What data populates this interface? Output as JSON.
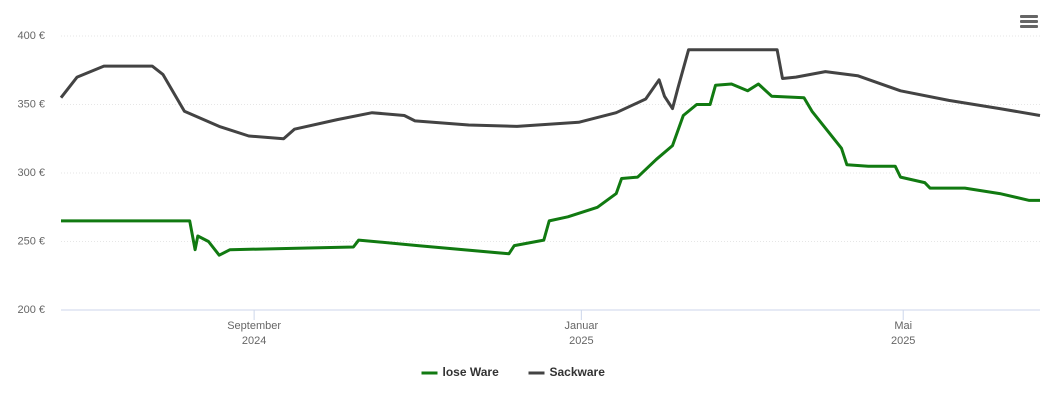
{
  "chart_data": {
    "type": "line",
    "xlim": [
      "2024-06-21",
      "2025-06-21"
    ],
    "xticks": [
      {
        "value": "2024-09-01",
        "label": [
          "September",
          "2024"
        ]
      },
      {
        "value": "2025-01-01",
        "label": [
          "Januar",
          "2025"
        ]
      },
      {
        "value": "2025-05-01",
        "label": [
          "Mai",
          "2025"
        ]
      }
    ],
    "ylim": [
      200,
      400
    ],
    "yticks": [
      {
        "value": 200,
        "label": "200 €"
      },
      {
        "value": 250,
        "label": "250 €"
      },
      {
        "value": 300,
        "label": "300 €"
      },
      {
        "value": 350,
        "label": "350 €"
      },
      {
        "value": 400,
        "label": "400 €"
      }
    ],
    "grid": true,
    "legend": "bottom",
    "series": [
      {
        "name": "lose Ware",
        "color": "#117a11",
        "x": [
          "2024-06-21",
          "2024-08-08",
          "2024-08-10",
          "2024-08-11",
          "2024-08-15",
          "2024-08-19",
          "2024-08-23",
          "2024-09-17",
          "2024-10-08",
          "2024-10-10",
          "2024-11-01",
          "2024-12-05",
          "2024-12-07",
          "2024-12-18",
          "2024-12-20",
          "2024-12-27",
          "2025-01-07",
          "2025-01-14",
          "2025-01-16",
          "2025-01-22",
          "2025-01-29",
          "2025-02-04",
          "2025-02-08",
          "2025-02-13",
          "2025-02-18",
          "2025-02-20",
          "2025-02-26",
          "2025-03-04",
          "2025-03-08",
          "2025-03-13",
          "2025-03-25",
          "2025-03-28",
          "2025-04-08",
          "2025-04-10",
          "2025-04-18",
          "2025-04-28",
          "2025-04-30",
          "2025-05-09",
          "2025-05-11",
          "2025-05-24",
          "2025-06-06",
          "2025-06-17",
          "2025-06-21"
        ],
        "values": [
          265,
          265,
          244,
          254,
          250,
          240,
          244,
          245,
          246,
          251,
          247,
          241,
          247,
          251,
          265,
          268,
          275,
          285,
          296,
          297,
          310,
          320,
          342,
          350,
          350,
          364,
          365,
          360,
          365,
          356,
          355,
          345,
          318,
          306,
          305,
          305,
          297,
          293,
          289,
          289,
          285,
          280,
          280
        ]
      },
      {
        "name": "Sackware",
        "color": "#434343",
        "x": [
          "2024-06-21",
          "2024-06-27",
          "2024-07-07",
          "2024-07-25",
          "2024-07-29",
          "2024-08-06",
          "2024-08-19",
          "2024-08-30",
          "2024-09-12",
          "2024-09-16",
          "2024-10-02",
          "2024-10-15",
          "2024-10-27",
          "2024-10-31",
          "2024-11-20",
          "2024-12-08",
          "2024-12-31",
          "2025-01-14",
          "2025-01-25",
          "2025-01-30",
          "2025-02-01",
          "2025-02-04",
          "2025-02-06",
          "2025-02-10",
          "2025-03-15",
          "2025-03-17",
          "2025-03-22",
          "2025-04-02",
          "2025-04-14",
          "2025-04-30",
          "2025-05-18",
          "2025-06-06",
          "2025-06-21"
        ],
        "values": [
          355,
          370,
          378,
          378,
          372,
          345,
          334,
          327,
          325,
          332,
          339,
          344,
          342,
          338,
          335,
          334,
          337,
          344,
          354,
          368,
          356,
          347,
          362,
          390,
          390,
          369,
          370,
          374,
          371,
          360,
          353,
          347,
          342
        ]
      }
    ]
  }
}
